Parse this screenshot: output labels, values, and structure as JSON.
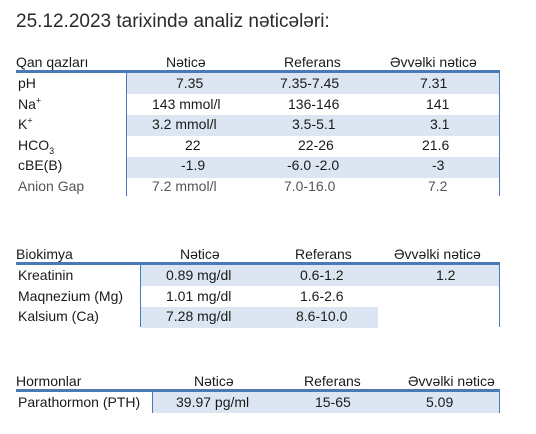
{
  "title": "25.12.2023 tarixində analiz nəticələri:",
  "tables": [
    {
      "headers": [
        "Qan qazları",
        "Nəticə",
        "Referans",
        "Əvvəlki nəticə"
      ],
      "rows": [
        {
          "label": "pH",
          "result": "7.35",
          "reference": "7.35-7.45",
          "previous": "7.31"
        },
        {
          "label": "Na",
          "label_sup": "+",
          "result": "143 mmol/l",
          "reference": "136-146",
          "previous": "141"
        },
        {
          "label": "K",
          "label_sup": "+",
          "result": "3.2 mmol/l",
          "reference": "3.5-5.1",
          "previous": "3.1"
        },
        {
          "label": "HCO",
          "label_sub": "3",
          "result": "22",
          "reference": "22-26",
          "previous": "21.6"
        },
        {
          "label": "cBE(B)",
          "result": "-1.9",
          "reference": "-6.0 -2.0",
          "previous": "-3"
        },
        {
          "label": "Anion Gap",
          "result": "7.2 mmol/l",
          "reference": "7.0-16.0",
          "previous": "7.2"
        }
      ]
    },
    {
      "headers": [
        "Biokimya",
        "Nəticə",
        "Referans",
        "Əvvəlki nəticə"
      ],
      "rows": [
        {
          "label": "Kreatinin",
          "result": "0.89 mg/dl",
          "reference": "0.6-1.2",
          "previous": "1.2"
        },
        {
          "label": "Maqnezium (Mg)",
          "result": "1.01 mg/dl",
          "reference": "1.6-2.6",
          "previous": ""
        },
        {
          "label": "Kalsium (Ca)",
          "result": "7.28 mg/dl",
          "reference": "8.6-10.0",
          "previous": ""
        }
      ]
    },
    {
      "headers": [
        "Hormonlar",
        "Nəticə",
        "Referans",
        "Əvvəlki nəticə"
      ],
      "rows": [
        {
          "label": "Parathormon (PTH)",
          "result": "39.97 pg/ml",
          "reference": "15-65",
          "previous": "5.09"
        }
      ]
    }
  ],
  "colors": {
    "accent": "#4a7ab5",
    "band": "#dce6f3"
  }
}
